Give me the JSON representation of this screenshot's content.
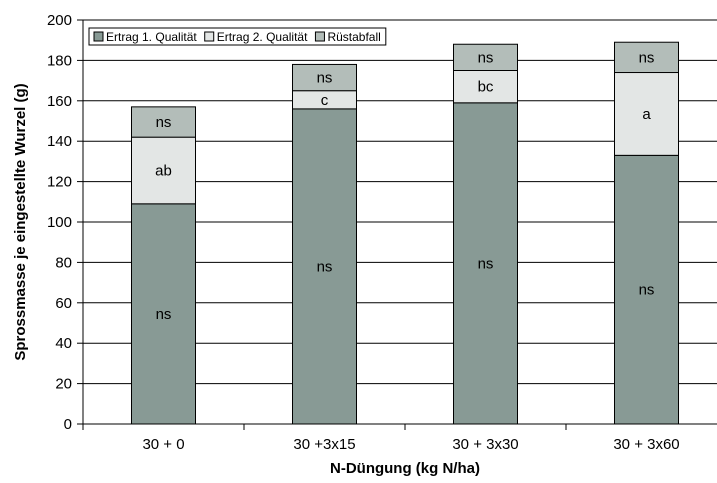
{
  "chart_data": {
    "type": "bar",
    "stacked": true,
    "title": "",
    "xlabel": "N-Düngung (kg N/ha)",
    "ylabel": "Sprossmasse je eingestellte Wurzel (g)",
    "ylim": [
      0,
      200
    ],
    "yticks": [
      0,
      20,
      40,
      60,
      80,
      100,
      120,
      140,
      160,
      180,
      200
    ],
    "grid": "horizontal",
    "legend_position": "top-left",
    "categories": [
      "30 + 0",
      "30 +3x15",
      "30 + 3x30",
      "30 + 3x60"
    ],
    "series": [
      {
        "name": "Ertrag 1. Qualität",
        "color": "#889a95",
        "values": [
          109,
          156,
          159,
          133
        ],
        "labels": [
          "ns",
          "ns",
          "ns",
          "ns"
        ]
      },
      {
        "name": "Ertrag 2. Qualität",
        "color": "#e3e6e5",
        "values": [
          33,
          9,
          16,
          41
        ],
        "labels": [
          "ab",
          "c",
          "bc",
          "a"
        ]
      },
      {
        "name": "Rüstabfall",
        "color": "#b3bdb9",
        "values": [
          15,
          13,
          13,
          15
        ],
        "labels": [
          "ns",
          "ns",
          "ns",
          "ns"
        ]
      }
    ]
  }
}
